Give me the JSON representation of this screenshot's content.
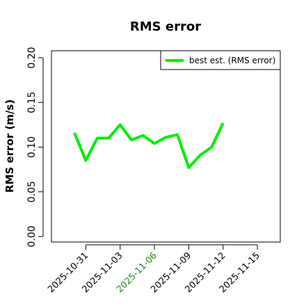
{
  "chart_data": {
    "type": "line",
    "title": "RMS error",
    "y_label": "RMS error (m/s)",
    "x": [
      "2025-10-30",
      "2025-10-31",
      "2025-11-01",
      "2025-11-02",
      "2025-11-03",
      "2025-11-04",
      "2025-11-05",
      "2025-11-06",
      "2025-11-07",
      "2025-11-08",
      "2025-11-09",
      "2025-11-10",
      "2025-11-11",
      "2025-11-12"
    ],
    "series": [
      {
        "name": "best est. (RMS error)",
        "color": "#00ee00",
        "values": [
          0.116,
          0.085,
          0.11,
          0.11,
          0.125,
          0.108,
          0.113,
          0.104,
          0.111,
          0.114,
          0.077,
          0.091,
          0.1,
          0.127
        ]
      }
    ],
    "xlim": [
      "2025-10-28",
      "2025-11-17"
    ],
    "xticks": [
      "2025-10-31",
      "2025-11-03",
      "2025-11-06",
      "2025-11-09",
      "2025-11-12",
      "2025-11-15"
    ],
    "xtick_colors": [
      "#000000",
      "#000000",
      "#228b22",
      "#000000",
      "#000000",
      "#000000"
    ],
    "ylim": [
      -0.0062,
      0.2078
    ],
    "yticks": [
      {
        "value": 0,
        "label": "0.00"
      },
      {
        "value": 0.05,
        "label": "0.05"
      },
      {
        "value": 0.1,
        "label": "0.10"
      },
      {
        "value": 0.15,
        "label": "0.15"
      },
      {
        "value": 0.2,
        "label": "0.20"
      }
    ],
    "legend": "top-right"
  }
}
